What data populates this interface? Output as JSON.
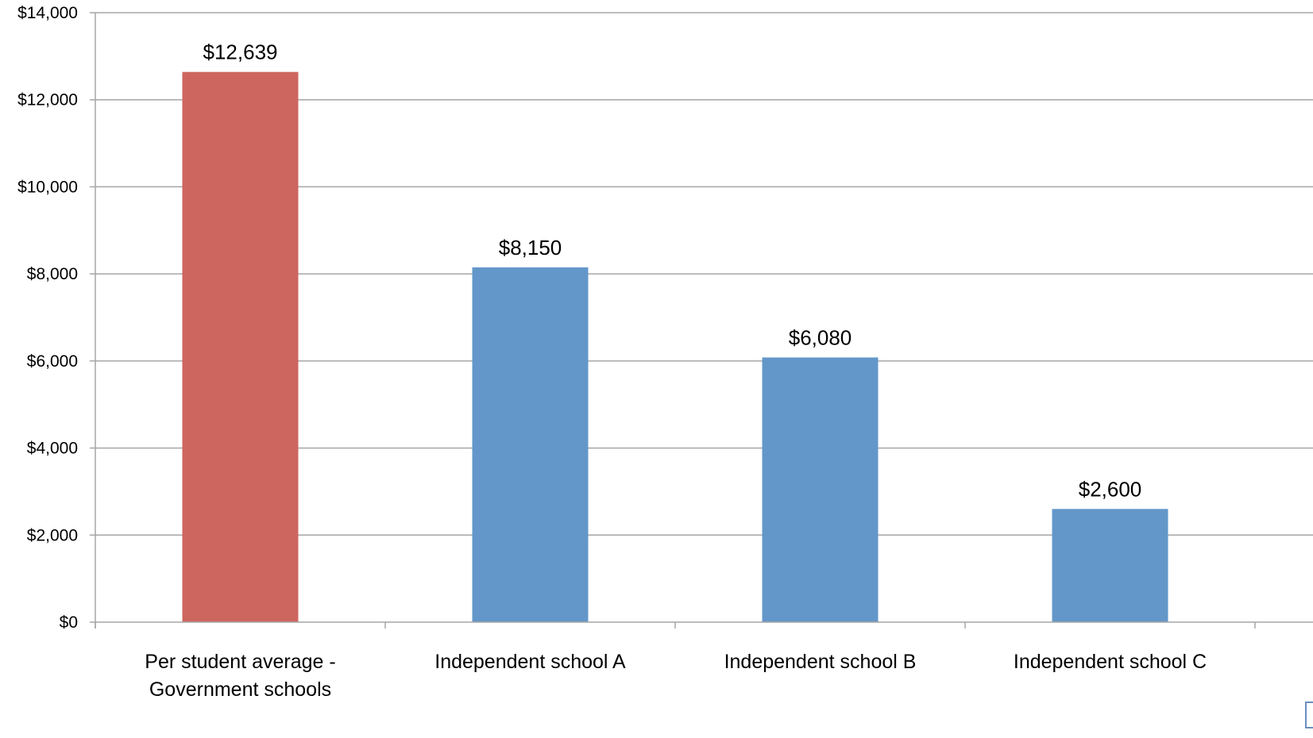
{
  "chart_data": {
    "type": "bar",
    "title": "",
    "xlabel": "",
    "ylabel": "",
    "categories": [
      [
        "Per student average -",
        "Government schools"
      ],
      [
        "Independent school A"
      ],
      [
        "Independent school B"
      ],
      [
        "Independent school C"
      ]
    ],
    "values": [
      12639,
      8150,
      6080,
      2600
    ],
    "value_labels": [
      "$12,639",
      "$8,150",
      "$6,080",
      "$2,600"
    ],
    "bar_colors": [
      "#cd665f",
      "#6397c9",
      "#6397c9",
      "#6397c9"
    ],
    "ylim": [
      0,
      14000
    ],
    "y_ticks": [
      {
        "value": 0,
        "label": "$0"
      },
      {
        "value": 2000,
        "label": "$2,000"
      },
      {
        "value": 4000,
        "label": "$4,000"
      },
      {
        "value": 6000,
        "label": "$6,000"
      },
      {
        "value": 8000,
        "label": "$8,000"
      },
      {
        "value": 10000,
        "label": "$10,000"
      },
      {
        "value": 12000,
        "label": "$12,000"
      },
      {
        "value": 14000,
        "label": "$14,000"
      }
    ],
    "grid": true,
    "gridline_color": "#a6a6a6",
    "legend": "none"
  }
}
